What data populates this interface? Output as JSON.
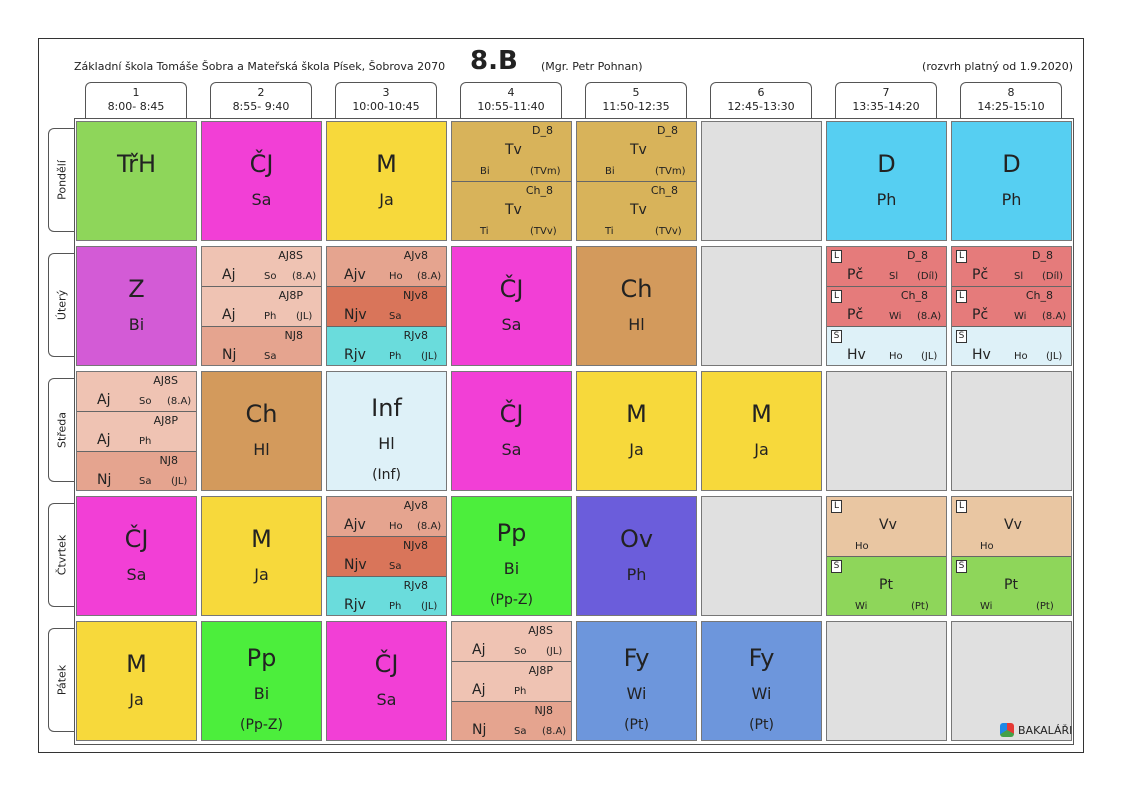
{
  "header": {
    "school": "Základní škola Tomáše Šobra a Mateřská škola Písek, Šobrova 2070",
    "class": "8.B",
    "teacher": "(Mgr. Petr Pohnan)",
    "validity": "(rozvrh platný od 1.9.2020)"
  },
  "periods": [
    {
      "n": "1",
      "t": "8:00- 8:45"
    },
    {
      "n": "2",
      "t": "8:55- 9:40"
    },
    {
      "n": "3",
      "t": "10:00-10:45"
    },
    {
      "n": "4",
      "t": "10:55-11:40"
    },
    {
      "n": "5",
      "t": "11:50-12:35"
    },
    {
      "n": "6",
      "t": "12:45-13:30"
    },
    {
      "n": "7",
      "t": "13:35-14:20"
    },
    {
      "n": "8",
      "t": "14:25-15:10"
    }
  ],
  "days": [
    "Pondělí",
    "Úterý",
    "Středa",
    "Čtvrtek",
    "Pátek"
  ],
  "colors": {
    "green": "#8ed65a",
    "magenta": "#f23fd6",
    "yellow": "#f7d93b",
    "tan": "#d8b35a",
    "cyan": "#56cff2",
    "purple": "#d35bd6",
    "salmon_light": "#efc3b3",
    "salmon": "#e5a48f",
    "salmon_dark": "#d9755a",
    "teal": "#6adcdc",
    "brown": "#d39a5c",
    "red": "#e57b7b",
    "lightblue": "#def1f8",
    "bright_green": "#4cee3c",
    "indigo": "#6b5ddb",
    "beige": "#e9c6a2",
    "steel": "#6d96dc",
    "empty": "#e0e0e0"
  },
  "cells": {
    "r0c0": {
      "subj": "TřH"
    },
    "r0c1": {
      "subj": "ČJ",
      "room": "Sa"
    },
    "r0c2": {
      "subj": "M",
      "room": "Ja"
    },
    "r0c3a": {
      "grp": "D_8",
      "subj": "Tv",
      "room": "Bi",
      "g2": "(TVm)"
    },
    "r0c3b": {
      "grp": "Ch_8",
      "subj": "Tv",
      "room": "Ti",
      "g2": "(TVv)"
    },
    "r0c4a": {
      "grp": "D_8",
      "subj": "Tv",
      "room": "Bi",
      "g2": "(TVm)"
    },
    "r0c4b": {
      "grp": "Ch_8",
      "subj": "Tv",
      "room": "Ti",
      "g2": "(TVv)"
    },
    "r0c6": {
      "subj": "D",
      "room": "Ph"
    },
    "r0c7": {
      "subj": "D",
      "room": "Ph"
    },
    "r1c0": {
      "subj": "Z",
      "room": "Bi"
    },
    "r1c1a": {
      "grp": "AJ8S",
      "subj": "Aj",
      "room": "So",
      "g2": "(8.A)"
    },
    "r1c1b": {
      "grp": "AJ8P",
      "subj": "Aj",
      "room": "Ph",
      "g2": "(JL)"
    },
    "r1c1c": {
      "grp": "NJ8",
      "subj": "Nj",
      "room": "Sa",
      "g2": ""
    },
    "r1c2a": {
      "grp": "AJv8",
      "subj": "Ajv",
      "room": "Ho",
      "g2": "(8.A)"
    },
    "r1c2b": {
      "grp": "NJv8",
      "subj": "Njv",
      "room": "Sa",
      "g2": ""
    },
    "r1c2c": {
      "grp": "RJv8",
      "subj": "Rjv",
      "room": "Ph",
      "g2": "(JL)"
    },
    "r1c3": {
      "subj": "ČJ",
      "room": "Sa"
    },
    "r1c4": {
      "subj": "Ch",
      "room": "Hl"
    },
    "r1c6a": {
      "tag": "L",
      "grp": "D_8",
      "subj": "Pč",
      "room": "Sl",
      "g2": "(Díl)"
    },
    "r1c6b": {
      "tag": "L",
      "grp": "Ch_8",
      "subj": "Pč",
      "room": "Wi",
      "g2": "(8.A)"
    },
    "r1c6c": {
      "tag": "S",
      "grp": "",
      "subj": "Hv",
      "room": "Ho",
      "g2": "(JL)"
    },
    "r1c7a": {
      "tag": "L",
      "grp": "D_8",
      "subj": "Pč",
      "room": "Sl",
      "g2": "(Díl)"
    },
    "r1c7b": {
      "tag": "L",
      "grp": "Ch_8",
      "subj": "Pč",
      "room": "Wi",
      "g2": "(8.A)"
    },
    "r1c7c": {
      "tag": "S",
      "grp": "",
      "subj": "Hv",
      "room": "Ho",
      "g2": "(JL)"
    },
    "r2c0a": {
      "grp": "AJ8S",
      "subj": "Aj",
      "room": "So",
      "g2": "(8.A)"
    },
    "r2c0b": {
      "grp": "AJ8P",
      "subj": "Aj",
      "room": "Ph",
      "g2": ""
    },
    "r2c0c": {
      "grp": "NJ8",
      "subj": "Nj",
      "room": "Sa",
      "g2": "(JL)"
    },
    "r2c1": {
      "subj": "Ch",
      "room": "Hl"
    },
    "r2c2": {
      "subj": "Inf",
      "room": "Hl",
      "extra": "(Inf)"
    },
    "r2c3": {
      "subj": "ČJ",
      "room": "Sa"
    },
    "r2c4": {
      "subj": "M",
      "room": "Ja"
    },
    "r2c5": {
      "subj": "M",
      "room": "Ja"
    },
    "r3c0": {
      "subj": "ČJ",
      "room": "Sa"
    },
    "r3c1": {
      "subj": "M",
      "room": "Ja"
    },
    "r3c2a": {
      "grp": "AJv8",
      "subj": "Ajv",
      "room": "Ho",
      "g2": "(8.A)"
    },
    "r3c2b": {
      "grp": "NJv8",
      "subj": "Njv",
      "room": "Sa",
      "g2": ""
    },
    "r3c2c": {
      "grp": "RJv8",
      "subj": "Rjv",
      "room": "Ph",
      "g2": "(JL)"
    },
    "r3c3": {
      "subj": "Pp",
      "room": "Bi",
      "extra": "(Pp-Z)"
    },
    "r3c4": {
      "subj": "Ov",
      "room": "Ph"
    },
    "r3c6a": {
      "tag": "L",
      "subj": "Vv",
      "room": "Ho",
      "g2": ""
    },
    "r3c6b": {
      "tag": "S",
      "subj": "Pt",
      "room": "Wi",
      "g2": "(Pt)"
    },
    "r3c7a": {
      "tag": "L",
      "subj": "Vv",
      "room": "Ho",
      "g2": ""
    },
    "r3c7b": {
      "tag": "S",
      "subj": "Pt",
      "room": "Wi",
      "g2": "(Pt)"
    },
    "r4c0": {
      "subj": "M",
      "room": "Ja"
    },
    "r4c1": {
      "subj": "Pp",
      "room": "Bi",
      "extra": "(Pp-Z)"
    },
    "r4c2": {
      "subj": "ČJ",
      "room": "Sa"
    },
    "r4c3a": {
      "grp": "AJ8S",
      "subj": "Aj",
      "room": "So",
      "g2": "(JL)"
    },
    "r4c3b": {
      "grp": "AJ8P",
      "subj": "Aj",
      "room": "Ph",
      "g2": ""
    },
    "r4c3c": {
      "grp": "NJ8",
      "subj": "Nj",
      "room": "Sa",
      "g2": "(8.A)"
    },
    "r4c4": {
      "subj": "Fy",
      "room": "Wi",
      "extra": "(Pt)"
    },
    "r4c5": {
      "subj": "Fy",
      "room": "Wi",
      "extra": "(Pt)"
    }
  },
  "logo": {
    "text": "BAKALÁŘI"
  }
}
